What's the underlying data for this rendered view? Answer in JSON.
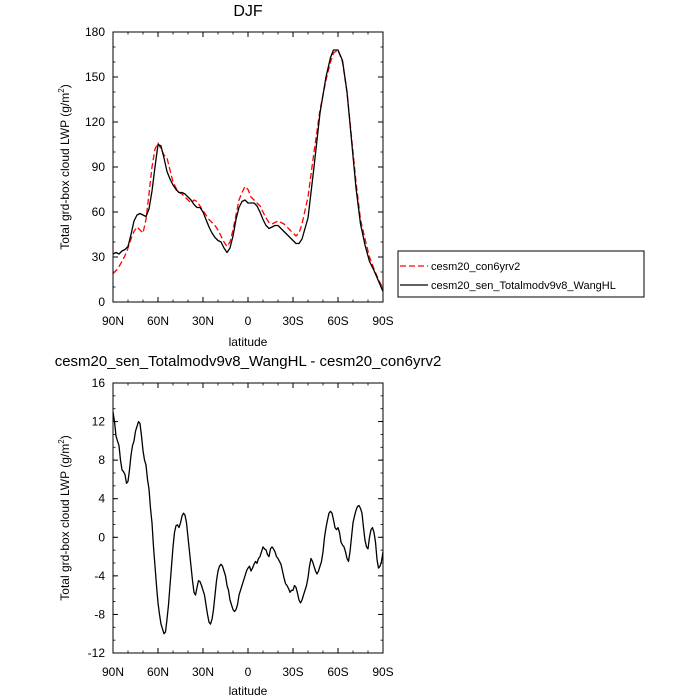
{
  "chart_data": [
    {
      "type": "line",
      "title": "DJF",
      "xlabel": "latitude",
      "ylabel": "Total grd-box cloud LWP (g/m",
      "ylabel_sup": "2",
      "ylabel_end": ")",
      "x_ticks": [
        "90N",
        "60N",
        "30N",
        "0",
        "30S",
        "60S",
        "90S"
      ],
      "x_tick_values": [
        90,
        60,
        30,
        0,
        -30,
        -60,
        -90
      ],
      "xlim": [
        90,
        -90
      ],
      "ylim": [
        0,
        180
      ],
      "y_ticks": [
        "0",
        "30",
        "60",
        "90",
        "120",
        "150",
        "180"
      ],
      "y_tick_values": [
        0,
        30,
        60,
        90,
        120,
        150,
        180
      ],
      "legend_position": "right",
      "series": [
        {
          "name": "cesm20_con6yrv2",
          "color": "#ff0000",
          "dash": "dashed",
          "x": [
            90,
            87,
            84,
            81,
            78,
            76,
            74,
            72,
            70,
            68,
            66,
            64,
            62,
            60,
            58,
            56,
            54,
            52,
            50,
            48,
            46,
            44,
            42,
            40,
            38,
            36,
            34,
            32,
            30,
            28,
            26,
            24,
            22,
            20,
            18,
            16,
            14,
            12,
            10,
            8,
            6,
            4,
            2,
            0,
            -2,
            -4,
            -6,
            -8,
            -10,
            -12,
            -14,
            -16,
            -18,
            -20,
            -22,
            -24,
            -26,
            -28,
            -30,
            -32,
            -34,
            -36,
            -40,
            -44,
            -48,
            -52,
            -55,
            -57,
            -60,
            -63,
            -66,
            -69,
            -72,
            -75,
            -78,
            -81,
            -84,
            -87,
            -90
          ],
          "y": [
            19,
            22,
            27,
            33,
            42,
            47,
            50,
            48,
            46,
            55,
            72,
            90,
            102,
            106,
            102,
            98,
            96,
            88,
            80,
            76,
            73,
            72,
            70,
            68,
            66,
            68,
            67,
            64,
            61,
            58,
            55,
            53,
            51,
            48,
            44,
            40,
            37,
            40,
            48,
            58,
            68,
            73,
            77,
            75,
            70,
            68,
            66,
            64,
            60,
            56,
            53,
            52,
            53,
            54,
            53,
            52,
            50,
            48,
            46,
            44,
            46,
            52,
            70,
            100,
            128,
            148,
            160,
            166,
            168,
            160,
            140,
            110,
            80,
            55,
            42,
            30,
            22,
            15,
            9
          ]
        },
        {
          "name": "cesm20_sen_Totalmodv9v8_WangHL",
          "color": "#000000",
          "dash": "solid",
          "x": [
            90,
            88,
            86,
            84,
            82,
            80,
            78,
            76,
            74,
            72,
            70,
            68,
            66,
            64,
            62,
            60,
            58,
            56,
            54,
            52,
            50,
            48,
            46,
            44,
            42,
            40,
            38,
            36,
            34,
            32,
            30,
            28,
            26,
            24,
            22,
            20,
            18,
            16,
            14,
            12,
            10,
            8,
            6,
            4,
            2,
            0,
            -2,
            -4,
            -6,
            -8,
            -10,
            -12,
            -14,
            -16,
            -18,
            -20,
            -22,
            -24,
            -26,
            -28,
            -30,
            -32,
            -34,
            -36,
            -40,
            -44,
            -48,
            -52,
            -55,
            -57,
            -60,
            -63,
            -66,
            -69,
            -72,
            -75,
            -78,
            -81,
            -84,
            -87,
            -90
          ],
          "y": [
            32,
            33,
            32,
            34,
            35,
            37,
            45,
            54,
            58,
            59,
            58,
            57,
            62,
            74,
            90,
            105,
            104,
            96,
            87,
            82,
            78,
            75,
            73,
            73,
            72,
            70,
            68,
            65,
            63,
            63,
            60,
            55,
            50,
            46,
            43,
            41,
            40,
            36,
            33,
            36,
            44,
            55,
            63,
            67,
            68,
            66,
            66,
            66,
            64,
            60,
            55,
            51,
            49,
            50,
            51,
            51,
            49,
            47,
            45,
            43,
            41,
            39,
            39,
            42,
            56,
            90,
            126,
            150,
            163,
            168,
            168,
            161,
            140,
            108,
            76,
            52,
            38,
            27,
            21,
            14,
            7
          ]
        }
      ]
    },
    {
      "type": "line",
      "title": "cesm20_sen_Totalmodv9v8_WangHL - cesm20_con6yrv2",
      "xlabel": "latitude",
      "ylabel": "Total grd-box cloud LWP (g/m",
      "ylabel_sup": "2",
      "ylabel_end": ")",
      "x_ticks": [
        "90N",
        "60N",
        "30N",
        "0",
        "30S",
        "60S",
        "90S"
      ],
      "x_tick_values": [
        90,
        60,
        30,
        0,
        -30,
        -60,
        -90
      ],
      "xlim": [
        90,
        -90
      ],
      "ylim": [
        -12,
        16
      ],
      "y_ticks": [
        "-12",
        "-8",
        "-4",
        "0",
        "4",
        "8",
        "12",
        "16"
      ],
      "y_tick_values": [
        -12,
        -8,
        -4,
        0,
        4,
        8,
        12,
        16
      ],
      "series": [
        {
          "name": "",
          "color": "#000000",
          "dash": "solid",
          "x": [
            90,
            89,
            88,
            87,
            86,
            85,
            84,
            83,
            82,
            81,
            80,
            79,
            78,
            77,
            76,
            75,
            74,
            73,
            72,
            71,
            70,
            69,
            68,
            67,
            66,
            65,
            64,
            63,
            62,
            61,
            60,
            59,
            58,
            57,
            56,
            55,
            54,
            53,
            52,
            51,
            50,
            49,
            48,
            47,
            46,
            45,
            44,
            43,
            42,
            41,
            40,
            39,
            38,
            37,
            36,
            35,
            34,
            33,
            32,
            31,
            30,
            29,
            28,
            27,
            26,
            25,
            24,
            23,
            22,
            21,
            20,
            19,
            18,
            17,
            16,
            15,
            14,
            13,
            12,
            11,
            10,
            9,
            8,
            7,
            6,
            5,
            4,
            3,
            2,
            1,
            0,
            -1,
            -2,
            -3,
            -4,
            -5,
            -6,
            -7,
            -8,
            -9,
            -10,
            -11,
            -12,
            -13,
            -14,
            -15,
            -16,
            -17,
            -18,
            -19,
            -20,
            -21,
            -22,
            -23,
            -24,
            -25,
            -26,
            -27,
            -28,
            -29,
            -30,
            -31,
            -32,
            -33,
            -34,
            -35,
            -36,
            -37,
            -38,
            -39,
            -40,
            -41,
            -42,
            -43,
            -44,
            -45,
            -46,
            -47,
            -48,
            -49,
            -50,
            -51,
            -52,
            -53,
            -54,
            -55,
            -56,
            -57,
            -58,
            -59,
            -60,
            -61,
            -62,
            -63,
            -64,
            -65,
            -66,
            -67,
            -68,
            -69,
            -70,
            -71,
            -72,
            -73,
            -74,
            -75,
            -76,
            -77,
            -78,
            -79,
            -80,
            -81,
            -82,
            -83,
            -84,
            -85,
            -86,
            -87,
            -88,
            -89,
            -90
          ],
          "y": [
            13,
            12,
            10.5,
            10,
            9.5,
            8,
            7,
            6.8,
            6.5,
            5.6,
            5.8,
            7,
            8.5,
            9.5,
            10,
            11,
            11.5,
            12,
            11.8,
            10.5,
            9,
            8,
            7.5,
            6,
            5,
            3,
            1.5,
            -1,
            -3,
            -5,
            -6.8,
            -8,
            -9,
            -9.5,
            -10,
            -9.8,
            -8.5,
            -7,
            -5,
            -3,
            -1,
            0.5,
            1.2,
            1.3,
            1,
            1.5,
            2.2,
            2.5,
            2.3,
            1.5,
            0,
            -1.5,
            -3,
            -4.5,
            -5.7,
            -6,
            -5.2,
            -4.5,
            -4.6,
            -5,
            -5.5,
            -6,
            -7,
            -8,
            -8.8,
            -9,
            -8.5,
            -7.5,
            -6,
            -4.5,
            -3.5,
            -3,
            -2.8,
            -3,
            -3.5,
            -4,
            -5,
            -5.5,
            -6.5,
            -7,
            -7.5,
            -7.7,
            -7.5,
            -7,
            -6,
            -5.5,
            -5,
            -4.5,
            -4,
            -3.5,
            -3.2,
            -3,
            -3.5,
            -3.2,
            -2.8,
            -2.5,
            -2.7,
            -2.2,
            -2,
            -1.5,
            -1,
            -1.2,
            -1.3,
            -1.8,
            -2,
            -1.2,
            -1,
            -1.2,
            -1.5,
            -2,
            -2.2,
            -2.5,
            -2.8,
            -3.5,
            -4.2,
            -4.8,
            -5,
            -5.3,
            -5.7,
            -5.5,
            -5.5,
            -5,
            -5.2,
            -5.8,
            -6.5,
            -6.8,
            -6.5,
            -6,
            -5.5,
            -5,
            -4.2,
            -3,
            -2.2,
            -2.5,
            -3,
            -3.5,
            -3.8,
            -3.5,
            -3,
            -2.5,
            -1.5,
            0,
            1,
            1.8,
            2.5,
            2.7,
            2.5,
            1.8,
            1,
            0.8,
            1,
            0.5,
            -0.5,
            -0.8,
            -1,
            -1.5,
            -2.2,
            -2.5,
            -1.5,
            0,
            1.5,
            2.2,
            2.8,
            3.2,
            3.3,
            3,
            2.5,
            1,
            -0.3,
            -1,
            -1.2,
            0,
            0.8,
            1,
            0.5,
            -0.5,
            -2.3,
            -3.2,
            -3,
            -2.5,
            -1.5
          ]
        }
      ]
    }
  ]
}
